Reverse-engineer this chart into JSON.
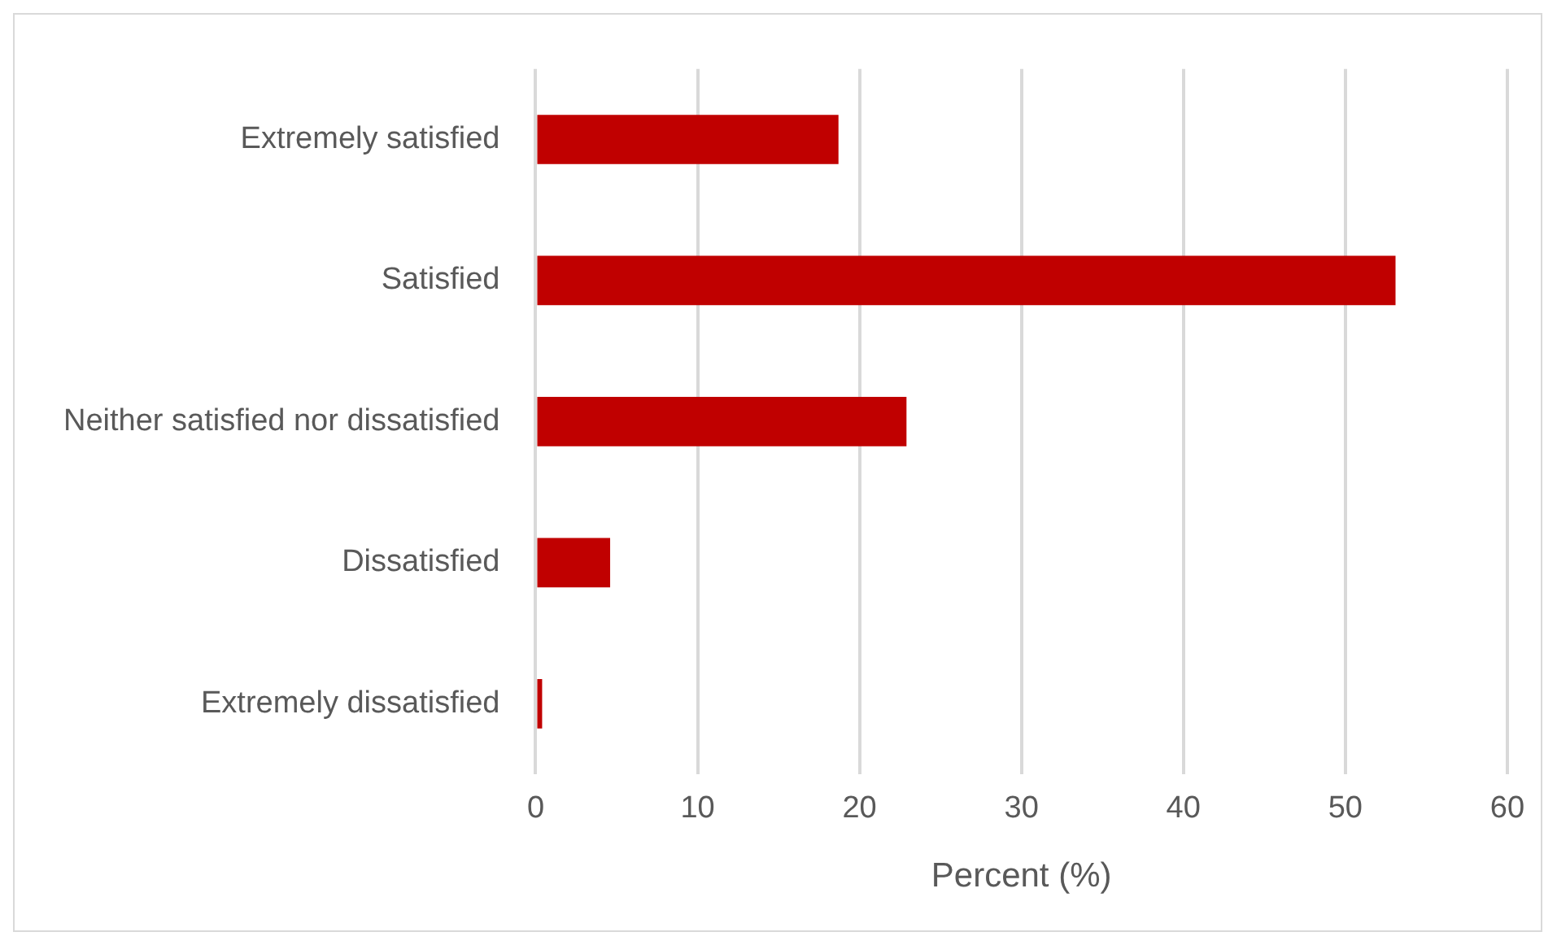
{
  "chart_data": {
    "type": "bar",
    "orientation": "horizontal",
    "categories": [
      "Extremely satisfied",
      "Satisfied",
      "Neither satisfied nor dissatisfied",
      "Dissatisfied",
      "Extremely dissatisfied"
    ],
    "values": [
      18.7,
      53.1,
      22.9,
      4.6,
      0.4
    ],
    "color": "#c00000",
    "xlabel": "Percent (%)",
    "xlim": [
      0,
      60
    ],
    "xticks": [
      0,
      10,
      20,
      30,
      40,
      50,
      60
    ],
    "grid": "x",
    "legend": false
  }
}
